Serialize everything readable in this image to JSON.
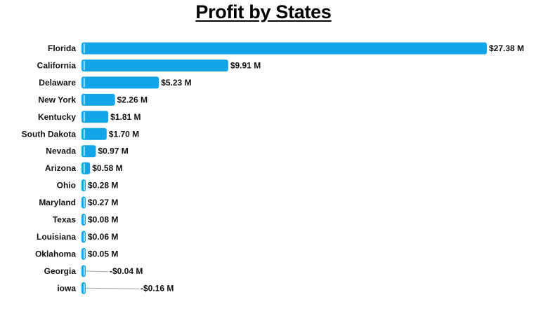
{
  "chart_data": {
    "type": "bar",
    "orientation": "horizontal",
    "title": "Profit by States",
    "xlabel": "",
    "ylabel": "",
    "grid": false,
    "legend": "none",
    "categories": [
      "Florida",
      "California",
      "Delaware",
      "New York",
      "Kentucky",
      "South Dakota",
      "Nevada",
      "Arizona",
      "Ohio",
      "Maryland",
      "Texas",
      "Louisiana",
      "Oklahoma",
      "Georgia",
      "iowa"
    ],
    "values": [
      27.38,
      9.91,
      5.23,
      2.26,
      1.81,
      1.7,
      0.97,
      0.58,
      0.28,
      0.27,
      0.08,
      0.06,
      0.05,
      -0.04,
      -0.16
    ],
    "data_labels": [
      "$27.38 M",
      "$9.91 M",
      "$5.23 M",
      "$2.26 M",
      "$1.81 M",
      "$1.70 M",
      "$0.97 M",
      "$0.58 M",
      "$0.28 M",
      "$0.27 M",
      "$0.08 M",
      "$0.06 M",
      "$0.05 M",
      "-$0.04 M",
      "-$0.16 M"
    ],
    "bar_color": "#12A5E8",
    "leader_line_color": "#A6A6A6"
  }
}
